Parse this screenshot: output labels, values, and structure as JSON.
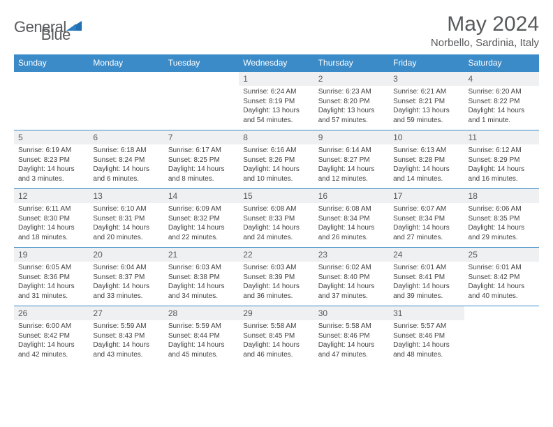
{
  "brand": {
    "name_a": "General",
    "name_b": "Blue"
  },
  "colors": {
    "header_bg": "#3b8bc9",
    "header_text": "#ffffff",
    "border": "#3b8bc9",
    "daynum_bg": "#eef0f2",
    "text_gray": "#58595b",
    "body_text": "#424242",
    "logo_accent": "#1f6fb2"
  },
  "title": "May 2024",
  "location": "Norbello, Sardinia, Italy",
  "weekday_headers": [
    "Sunday",
    "Monday",
    "Tuesday",
    "Wednesday",
    "Thursday",
    "Friday",
    "Saturday"
  ],
  "weeks": [
    [
      {
        "n": "",
        "sr": "",
        "ss": "",
        "dl": ""
      },
      {
        "n": "",
        "sr": "",
        "ss": "",
        "dl": ""
      },
      {
        "n": "",
        "sr": "",
        "ss": "",
        "dl": ""
      },
      {
        "n": "1",
        "sr": "Sunrise: 6:24 AM",
        "ss": "Sunset: 8:19 PM",
        "dl": "Daylight: 13 hours and 54 minutes."
      },
      {
        "n": "2",
        "sr": "Sunrise: 6:23 AM",
        "ss": "Sunset: 8:20 PM",
        "dl": "Daylight: 13 hours and 57 minutes."
      },
      {
        "n": "3",
        "sr": "Sunrise: 6:21 AM",
        "ss": "Sunset: 8:21 PM",
        "dl": "Daylight: 13 hours and 59 minutes."
      },
      {
        "n": "4",
        "sr": "Sunrise: 6:20 AM",
        "ss": "Sunset: 8:22 PM",
        "dl": "Daylight: 14 hours and 1 minute."
      }
    ],
    [
      {
        "n": "5",
        "sr": "Sunrise: 6:19 AM",
        "ss": "Sunset: 8:23 PM",
        "dl": "Daylight: 14 hours and 3 minutes."
      },
      {
        "n": "6",
        "sr": "Sunrise: 6:18 AM",
        "ss": "Sunset: 8:24 PM",
        "dl": "Daylight: 14 hours and 6 minutes."
      },
      {
        "n": "7",
        "sr": "Sunrise: 6:17 AM",
        "ss": "Sunset: 8:25 PM",
        "dl": "Daylight: 14 hours and 8 minutes."
      },
      {
        "n": "8",
        "sr": "Sunrise: 6:16 AM",
        "ss": "Sunset: 8:26 PM",
        "dl": "Daylight: 14 hours and 10 minutes."
      },
      {
        "n": "9",
        "sr": "Sunrise: 6:14 AM",
        "ss": "Sunset: 8:27 PM",
        "dl": "Daylight: 14 hours and 12 minutes."
      },
      {
        "n": "10",
        "sr": "Sunrise: 6:13 AM",
        "ss": "Sunset: 8:28 PM",
        "dl": "Daylight: 14 hours and 14 minutes."
      },
      {
        "n": "11",
        "sr": "Sunrise: 6:12 AM",
        "ss": "Sunset: 8:29 PM",
        "dl": "Daylight: 14 hours and 16 minutes."
      }
    ],
    [
      {
        "n": "12",
        "sr": "Sunrise: 6:11 AM",
        "ss": "Sunset: 8:30 PM",
        "dl": "Daylight: 14 hours and 18 minutes."
      },
      {
        "n": "13",
        "sr": "Sunrise: 6:10 AM",
        "ss": "Sunset: 8:31 PM",
        "dl": "Daylight: 14 hours and 20 minutes."
      },
      {
        "n": "14",
        "sr": "Sunrise: 6:09 AM",
        "ss": "Sunset: 8:32 PM",
        "dl": "Daylight: 14 hours and 22 minutes."
      },
      {
        "n": "15",
        "sr": "Sunrise: 6:08 AM",
        "ss": "Sunset: 8:33 PM",
        "dl": "Daylight: 14 hours and 24 minutes."
      },
      {
        "n": "16",
        "sr": "Sunrise: 6:08 AM",
        "ss": "Sunset: 8:34 PM",
        "dl": "Daylight: 14 hours and 26 minutes."
      },
      {
        "n": "17",
        "sr": "Sunrise: 6:07 AM",
        "ss": "Sunset: 8:34 PM",
        "dl": "Daylight: 14 hours and 27 minutes."
      },
      {
        "n": "18",
        "sr": "Sunrise: 6:06 AM",
        "ss": "Sunset: 8:35 PM",
        "dl": "Daylight: 14 hours and 29 minutes."
      }
    ],
    [
      {
        "n": "19",
        "sr": "Sunrise: 6:05 AM",
        "ss": "Sunset: 8:36 PM",
        "dl": "Daylight: 14 hours and 31 minutes."
      },
      {
        "n": "20",
        "sr": "Sunrise: 6:04 AM",
        "ss": "Sunset: 8:37 PM",
        "dl": "Daylight: 14 hours and 33 minutes."
      },
      {
        "n": "21",
        "sr": "Sunrise: 6:03 AM",
        "ss": "Sunset: 8:38 PM",
        "dl": "Daylight: 14 hours and 34 minutes."
      },
      {
        "n": "22",
        "sr": "Sunrise: 6:03 AM",
        "ss": "Sunset: 8:39 PM",
        "dl": "Daylight: 14 hours and 36 minutes."
      },
      {
        "n": "23",
        "sr": "Sunrise: 6:02 AM",
        "ss": "Sunset: 8:40 PM",
        "dl": "Daylight: 14 hours and 37 minutes."
      },
      {
        "n": "24",
        "sr": "Sunrise: 6:01 AM",
        "ss": "Sunset: 8:41 PM",
        "dl": "Daylight: 14 hours and 39 minutes."
      },
      {
        "n": "25",
        "sr": "Sunrise: 6:01 AM",
        "ss": "Sunset: 8:42 PM",
        "dl": "Daylight: 14 hours and 40 minutes."
      }
    ],
    [
      {
        "n": "26",
        "sr": "Sunrise: 6:00 AM",
        "ss": "Sunset: 8:42 PM",
        "dl": "Daylight: 14 hours and 42 minutes."
      },
      {
        "n": "27",
        "sr": "Sunrise: 5:59 AM",
        "ss": "Sunset: 8:43 PM",
        "dl": "Daylight: 14 hours and 43 minutes."
      },
      {
        "n": "28",
        "sr": "Sunrise: 5:59 AM",
        "ss": "Sunset: 8:44 PM",
        "dl": "Daylight: 14 hours and 45 minutes."
      },
      {
        "n": "29",
        "sr": "Sunrise: 5:58 AM",
        "ss": "Sunset: 8:45 PM",
        "dl": "Daylight: 14 hours and 46 minutes."
      },
      {
        "n": "30",
        "sr": "Sunrise: 5:58 AM",
        "ss": "Sunset: 8:46 PM",
        "dl": "Daylight: 14 hours and 47 minutes."
      },
      {
        "n": "31",
        "sr": "Sunrise: 5:57 AM",
        "ss": "Sunset: 8:46 PM",
        "dl": "Daylight: 14 hours and 48 minutes."
      },
      {
        "n": "",
        "sr": "",
        "ss": "",
        "dl": ""
      }
    ]
  ]
}
